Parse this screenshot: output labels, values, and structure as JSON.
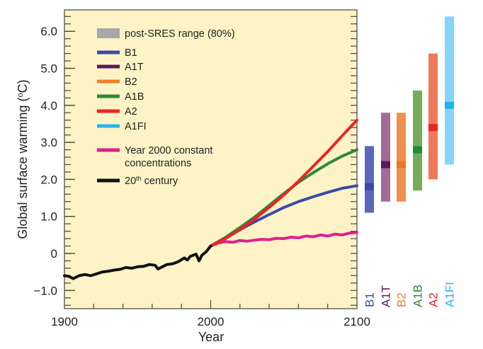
{
  "chart_data": {
    "type": "line",
    "title": "",
    "xlabel": "Year",
    "ylabel": "Global surface warming (°C)",
    "ylabel_parts": {
      "pre": "Global surface warming (",
      "sup": "o",
      "post": "C)"
    },
    "xlim": [
      1900,
      2100
    ],
    "ylim": [
      -1.5,
      6.8
    ],
    "x_ticks": [
      1900,
      2000,
      2100
    ],
    "x_tick_labels": [
      "1900",
      "2000",
      "2100"
    ],
    "x_minor_step": 20,
    "y_ticks": [
      -1.0,
      0,
      1.0,
      2.0,
      3.0,
      4.0,
      5.0,
      6.0
    ],
    "y_tick_labels": [
      "−1.0",
      "0",
      "1.0",
      "2.0",
      "3.0",
      "4.0",
      "5.0",
      "6.0"
    ],
    "y_minor_step": 0.2,
    "grid": false,
    "background": "#fdf3c6",
    "legend_position": "top-left",
    "legend": [
      {
        "label": "post-SRES range (80%)",
        "color": "#a8a8a8",
        "kind": "patch"
      },
      {
        "label": "B1",
        "color": "#3a4aa8",
        "kind": "line"
      },
      {
        "label": "A1T",
        "color": "#5a1a5a",
        "kind": "line"
      },
      {
        "label": "B2",
        "color": "#ef7d2a",
        "kind": "line"
      },
      {
        "label": "A1B",
        "color": "#2a8a3a",
        "kind": "line"
      },
      {
        "label": "A2",
        "color": "#ee2222",
        "kind": "line"
      },
      {
        "label": "A1FI",
        "color": "#2ab4ee",
        "kind": "line"
      },
      {
        "label": "Year 2000 constant",
        "label2": "concentrations",
        "color": "#e0208e",
        "kind": "line"
      },
      {
        "label": "20",
        "sup": "th",
        "label_rest": " century",
        "color": "#111111",
        "kind": "line"
      }
    ],
    "series": [
      {
        "name": "20th century",
        "color": "#111111",
        "x": [
          1900,
          1903,
          1906,
          1910,
          1914,
          1918,
          1922,
          1926,
          1930,
          1934,
          1938,
          1942,
          1946,
          1950,
          1954,
          1958,
          1962,
          1964,
          1966,
          1970,
          1974,
          1978,
          1982,
          1984,
          1986,
          1988,
          1990,
          1992,
          1994,
          1997,
          2000
        ],
        "y": [
          -0.6,
          -0.62,
          -0.68,
          -0.6,
          -0.57,
          -0.6,
          -0.55,
          -0.5,
          -0.48,
          -0.45,
          -0.43,
          -0.38,
          -0.4,
          -0.36,
          -0.35,
          -0.3,
          -0.32,
          -0.42,
          -0.38,
          -0.3,
          -0.28,
          -0.22,
          -0.12,
          -0.18,
          -0.08,
          -0.05,
          -0.02,
          -0.2,
          -0.05,
          0.05,
          0.2
        ]
      },
      {
        "name": "Year 2000 constant concentrations",
        "color": "#e0208e",
        "x": [
          2000,
          2005,
          2010,
          2015,
          2020,
          2025,
          2030,
          2035,
          2040,
          2045,
          2050,
          2055,
          2060,
          2065,
          2070,
          2075,
          2080,
          2085,
          2090,
          2095,
          2100
        ],
        "y": [
          0.2,
          0.28,
          0.32,
          0.3,
          0.35,
          0.33,
          0.36,
          0.38,
          0.37,
          0.41,
          0.4,
          0.44,
          0.42,
          0.47,
          0.45,
          0.5,
          0.47,
          0.52,
          0.5,
          0.55,
          0.57
        ]
      },
      {
        "name": "B1",
        "color": "#3a4aa8",
        "x": [
          2000,
          2010,
          2020,
          2030,
          2040,
          2050,
          2060,
          2070,
          2080,
          2090,
          2100
        ],
        "y": [
          0.2,
          0.42,
          0.64,
          0.85,
          1.05,
          1.24,
          1.4,
          1.53,
          1.65,
          1.76,
          1.83
        ]
      },
      {
        "name": "A1B",
        "color": "#2a8a3a",
        "x": [
          2000,
          2010,
          2020,
          2030,
          2040,
          2050,
          2060,
          2070,
          2080,
          2090,
          2100
        ],
        "y": [
          0.2,
          0.43,
          0.7,
          0.98,
          1.3,
          1.62,
          1.92,
          2.18,
          2.42,
          2.63,
          2.8
        ]
      },
      {
        "name": "A2",
        "color": "#ee2222",
        "x": [
          2000,
          2010,
          2020,
          2030,
          2040,
          2050,
          2060,
          2070,
          2080,
          2090,
          2100
        ],
        "y": [
          0.2,
          0.4,
          0.64,
          0.93,
          1.24,
          1.58,
          1.95,
          2.35,
          2.75,
          3.18,
          3.6
        ]
      }
    ],
    "range_bars": [
      {
        "name": "B1",
        "low": 1.1,
        "best": 1.8,
        "high": 2.9,
        "color": "#5b68b8",
        "best_color": "#3a4aa8",
        "label_color": "#3a4aa8"
      },
      {
        "name": "A1T",
        "low": 1.4,
        "best": 2.4,
        "high": 3.8,
        "color": "#a06c96",
        "best_color": "#5a1a5a",
        "label_color": "#5a1a5a"
      },
      {
        "name": "B2",
        "low": 1.4,
        "best": 2.4,
        "high": 3.8,
        "color": "#f09050",
        "best_color": "#ea7a22",
        "label_color": "#ef7d2a"
      },
      {
        "name": "A1B",
        "low": 1.7,
        "best": 2.8,
        "high": 4.4,
        "color": "#74ac5c",
        "best_color": "#228a3a",
        "label_color": "#2a8a3a"
      },
      {
        "name": "A2",
        "low": 2.0,
        "best": 3.4,
        "high": 5.4,
        "color": "#ef7a5a",
        "best_color": "#ee2222",
        "label_color": "#ee2222"
      },
      {
        "name": "A1FI",
        "low": 2.4,
        "best": 4.0,
        "high": 6.4,
        "color": "#88d4f4",
        "best_color": "#22b0ee",
        "label_color": "#2ab4ee"
      }
    ]
  }
}
